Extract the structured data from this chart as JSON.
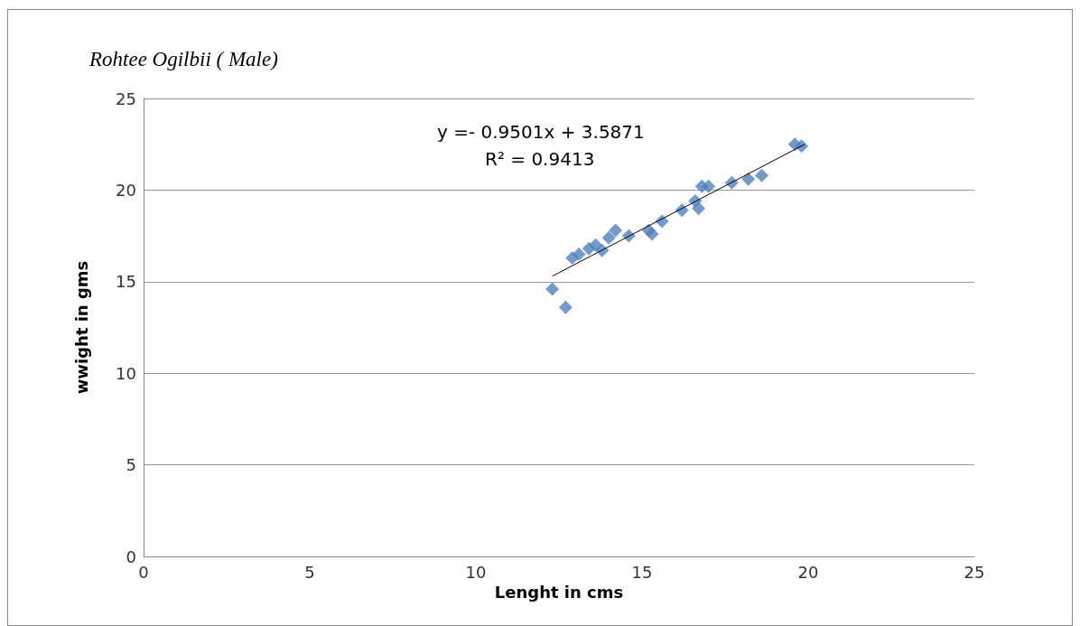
{
  "chart_data": {
    "type": "scatter",
    "title": "Rohtee Ogilbii ( Male)",
    "xlabel": "Lenght in cms",
    "ylabel": "wwight in gms",
    "xlim": [
      0,
      25
    ],
    "xticks": [
      0,
      5,
      10,
      15,
      20,
      25
    ],
    "ylim": [
      0,
      25
    ],
    "yticks": [
      0,
      5,
      10,
      15,
      20,
      25
    ],
    "grid": "y",
    "marker": "diamond",
    "annotations": [
      "y =- 0.9501x + 3.5871",
      "R² = 0.9413"
    ],
    "series": [
      {
        "color": "#4f81bd",
        "x": [
          12.3,
          12.7,
          12.9,
          13.1,
          13.4,
          13.6,
          13.8,
          14.0,
          14.2,
          14.6,
          15.2,
          15.3,
          15.6,
          16.2,
          16.6,
          16.7,
          16.8,
          17.0,
          17.7,
          18.2,
          18.6,
          19.6,
          19.8
        ],
        "values": [
          14.6,
          13.6,
          16.3,
          16.5,
          16.8,
          17.0,
          16.7,
          17.4,
          17.8,
          17.5,
          17.8,
          17.6,
          18.3,
          18.9,
          19.4,
          19.0,
          20.2,
          20.2,
          20.4,
          20.6,
          20.8,
          22.5,
          22.4
        ]
      },
      {
        "type": "line",
        "color": "#000000",
        "marker": "none",
        "x": [
          12.3,
          19.9
        ],
        "values": [
          15.3,
          22.5
        ]
      }
    ]
  }
}
